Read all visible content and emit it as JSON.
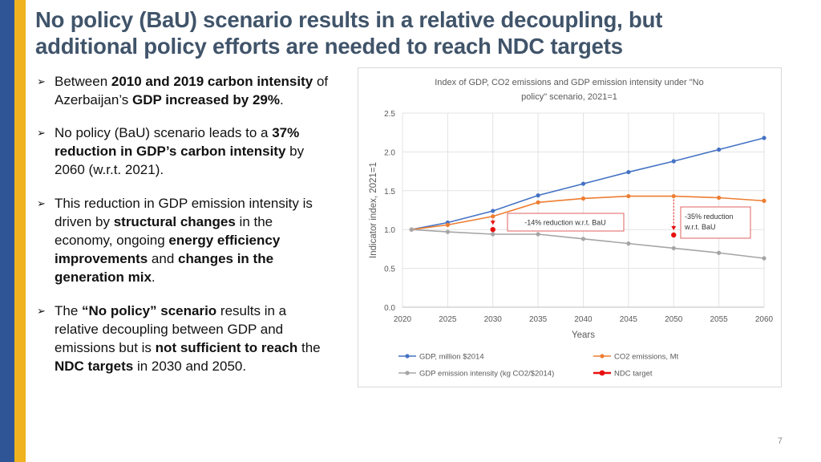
{
  "slide": {
    "title_line1": "No policy (BaU) scenario results in a relative decoupling, but",
    "title_line2": "additional policy efforts are needed to reach NDC targets",
    "page_number": "7"
  },
  "bullets": [
    {
      "parts": [
        {
          "t": "Between ",
          "b": false
        },
        {
          "t": "2010 and 2019 carbon intensity",
          "b": true
        },
        {
          "t": " of Azerbaijan’s ",
          "b": false
        },
        {
          "t": "GDP increased by 29%",
          "b": true
        },
        {
          "t": ".",
          "b": false
        }
      ]
    },
    {
      "parts": [
        {
          "t": "No policy (BaU) scenario leads to a ",
          "b": false
        },
        {
          "t": "37% reduction in GDP’s carbon intensity",
          "b": true
        },
        {
          "t": " by 2060 (w.r.t. 2021).",
          "b": false
        }
      ]
    },
    {
      "parts": [
        {
          "t": "This reduction in GDP emission intensity is driven by ",
          "b": false
        },
        {
          "t": "structural changes",
          "b": true
        },
        {
          "t": " in the economy, ongoing ",
          "b": false
        },
        {
          "t": "energy efficiency improvements",
          "b": true
        },
        {
          "t": " and ",
          "b": false
        },
        {
          "t": "changes in the generation mix",
          "b": true
        },
        {
          "t": ".",
          "b": false
        }
      ]
    },
    {
      "parts": [
        {
          "t": "The ",
          "b": false
        },
        {
          "t": "“No policy” scenario",
          "b": true
        },
        {
          "t": " results in a relative decoupling between GDP and emissions but is ",
          "b": false
        },
        {
          "t": "not sufficient to reach",
          "b": true
        },
        {
          "t": " the ",
          "b": false
        },
        {
          "t": "NDC targets",
          "b": true
        },
        {
          "t": " in 2030 and 2050.",
          "b": false
        }
      ]
    }
  ],
  "chart_data": {
    "type": "line",
    "title_line1": "Index of GDP, CO2 emissions and GDP emission intensity under \"No",
    "title_line2": "policy\" scenario, 2021=1",
    "xlabel": "Years",
    "ylabel": "Indicator index, 2021=1",
    "x_ticks": [
      "2020",
      "2025",
      "2030",
      "2035",
      "2040",
      "2045",
      "2050",
      "2055",
      "2060"
    ],
    "y_ticks": [
      "0.0",
      "0.5",
      "1.0",
      "1.5",
      "2.0",
      "2.5"
    ],
    "xlim": [
      2020,
      2060
    ],
    "ylim": [
      0,
      2.5
    ],
    "series": [
      {
        "name": "GDP, million $2014",
        "color": "#4472c4",
        "x": [
          2021,
          2025,
          2030,
          2035,
          2040,
          2045,
          2050,
          2055,
          2060
        ],
        "y": [
          1.0,
          1.09,
          1.24,
          1.44,
          1.59,
          1.74,
          1.88,
          2.03,
          2.18
        ]
      },
      {
        "name": "CO2 emissions, Mt",
        "color": "#ed7d31",
        "x": [
          2021,
          2025,
          2030,
          2035,
          2040,
          2045,
          2050,
          2055,
          2060
        ],
        "y": [
          1.0,
          1.06,
          1.17,
          1.35,
          1.4,
          1.43,
          1.43,
          1.41,
          1.37
        ]
      },
      {
        "name": "GDP emission intensity (kg CO2/$2014)",
        "color": "#a5a5a5",
        "x": [
          2021,
          2025,
          2030,
          2035,
          2040,
          2045,
          2050,
          2055,
          2060
        ],
        "y": [
          1.0,
          0.97,
          0.94,
          0.94,
          0.88,
          0.82,
          0.76,
          0.7,
          0.63
        ]
      }
    ],
    "ndc_target": {
      "name": "NDC target",
      "color": "#e81010",
      "x": [
        2030,
        2050
      ],
      "y": [
        1.0,
        0.93
      ]
    },
    "annotations": [
      {
        "text": "-14% reduction w.r.t. BaU",
        "year": 2030
      },
      {
        "line1": "-35% reduction",
        "line2": "w.r.t. BaU",
        "year": 2050
      }
    ],
    "grid": true,
    "legend_position": "bottom"
  }
}
